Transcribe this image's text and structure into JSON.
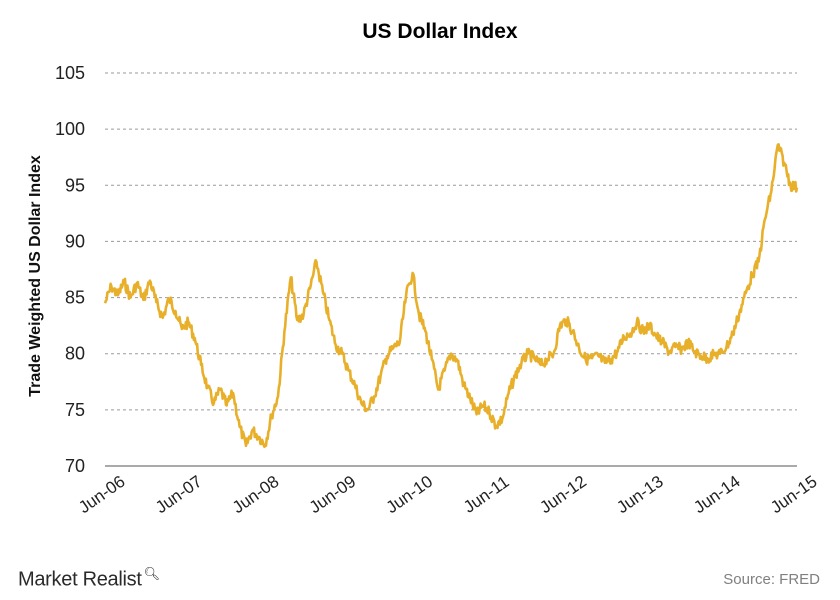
{
  "brand": {
    "name": "Market Realist",
    "icon": "magnifier-icon"
  },
  "source": "Source: FRED",
  "chart_data": {
    "type": "line",
    "title": "US Dollar Index",
    "xlabel": "",
    "ylabel": "Trade Weighted US Dollar Index",
    "ylim": [
      70,
      105
    ],
    "yticks": [
      70,
      75,
      80,
      85,
      90,
      95,
      100,
      105
    ],
    "xlim": [
      "2006-06",
      "2015-06"
    ],
    "xticks": [
      "Jun-06",
      "Jun-07",
      "Jun-08",
      "Jun-09",
      "Jun-10",
      "Jun-11",
      "Jun-12",
      "Jun-13",
      "Jun-14",
      "Jun-15"
    ],
    "grid": true,
    "color": "#E8B02A",
    "series": [
      {
        "name": "",
        "points": [
          [
            "2006-06",
            84.5
          ],
          [
            "2006-07",
            86.0
          ],
          [
            "2006-08",
            85.2
          ],
          [
            "2006-09",
            86.4
          ],
          [
            "2006-10",
            85.0
          ],
          [
            "2006-11",
            86.3
          ],
          [
            "2006-12",
            84.8
          ],
          [
            "2007-01",
            86.5
          ],
          [
            "2007-02",
            84.6
          ],
          [
            "2007-03",
            83.2
          ],
          [
            "2007-04",
            84.9
          ],
          [
            "2007-05",
            83.8
          ],
          [
            "2007-06",
            82.2
          ],
          [
            "2007-07",
            82.8
          ],
          [
            "2007-08",
            81.4
          ],
          [
            "2007-09",
            79.0
          ],
          [
            "2007-10",
            77.0
          ],
          [
            "2007-11",
            75.6
          ],
          [
            "2007-12",
            76.8
          ],
          [
            "2008-01",
            75.4
          ],
          [
            "2008-02",
            76.5
          ],
          [
            "2008-03",
            73.5
          ],
          [
            "2008-04",
            71.8
          ],
          [
            "2008-05",
            73.2
          ],
          [
            "2008-06",
            72.6
          ],
          [
            "2008-07",
            71.9
          ],
          [
            "2008-08",
            74.5
          ],
          [
            "2008-09",
            76.2
          ],
          [
            "2008-10",
            82.0
          ],
          [
            "2008-11",
            86.8
          ],
          [
            "2008-12",
            83.0
          ],
          [
            "2009-01",
            83.5
          ],
          [
            "2009-02",
            85.8
          ],
          [
            "2009-03",
            88.2
          ],
          [
            "2009-04",
            85.5
          ],
          [
            "2009-05",
            83.0
          ],
          [
            "2009-06",
            80.8
          ],
          [
            "2009-07",
            80.0
          ],
          [
            "2009-08",
            78.5
          ],
          [
            "2009-09",
            77.2
          ],
          [
            "2009-10",
            75.6
          ],
          [
            "2009-11",
            75.0
          ],
          [
            "2009-12",
            76.2
          ],
          [
            "2010-01",
            78.0
          ],
          [
            "2010-02",
            79.8
          ],
          [
            "2010-03",
            80.5
          ],
          [
            "2010-04",
            81.0
          ],
          [
            "2010-05",
            85.2
          ],
          [
            "2010-06",
            87.2
          ],
          [
            "2010-07",
            83.5
          ],
          [
            "2010-08",
            82.0
          ],
          [
            "2010-09",
            79.5
          ],
          [
            "2010-10",
            76.8
          ],
          [
            "2010-11",
            78.5
          ],
          [
            "2010-12",
            80.0
          ],
          [
            "2011-01",
            79.4
          ],
          [
            "2011-02",
            77.2
          ],
          [
            "2011-03",
            76.0
          ],
          [
            "2011-04",
            74.6
          ],
          [
            "2011-05",
            75.4
          ],
          [
            "2011-06",
            74.8
          ],
          [
            "2011-07",
            73.6
          ],
          [
            "2011-08",
            74.2
          ],
          [
            "2011-09",
            76.5
          ],
          [
            "2011-10",
            78.0
          ],
          [
            "2011-11",
            79.2
          ],
          [
            "2011-12",
            80.0
          ],
          [
            "2012-01",
            79.6
          ],
          [
            "2012-02",
            79.0
          ],
          [
            "2012-03",
            79.5
          ],
          [
            "2012-04",
            80.0
          ],
          [
            "2012-05",
            82.5
          ],
          [
            "2012-06",
            83.0
          ],
          [
            "2012-07",
            82.0
          ],
          [
            "2012-08",
            80.5
          ],
          [
            "2012-09",
            79.5
          ],
          [
            "2012-10",
            79.6
          ],
          [
            "2012-11",
            79.8
          ],
          [
            "2012-12",
            79.2
          ],
          [
            "2013-01",
            79.5
          ],
          [
            "2013-02",
            80.2
          ],
          [
            "2013-03",
            81.5
          ],
          [
            "2013-04",
            81.8
          ],
          [
            "2013-05",
            82.8
          ],
          [
            "2013-06",
            82.0
          ],
          [
            "2013-07",
            82.5
          ],
          [
            "2013-08",
            81.6
          ],
          [
            "2013-09",
            81.0
          ],
          [
            "2013-10",
            80.2
          ],
          [
            "2013-11",
            80.6
          ],
          [
            "2013-12",
            80.4
          ],
          [
            "2014-01",
            81.0
          ],
          [
            "2014-02",
            80.2
          ],
          [
            "2014-03",
            79.8
          ],
          [
            "2014-04",
            79.6
          ],
          [
            "2014-05",
            79.9
          ],
          [
            "2014-06",
            80.0
          ],
          [
            "2014-07",
            80.6
          ],
          [
            "2014-08",
            81.8
          ],
          [
            "2014-09",
            83.6
          ],
          [
            "2014-10",
            85.4
          ],
          [
            "2014-11",
            87.0
          ],
          [
            "2014-12",
            88.2
          ],
          [
            "2015-01",
            92.0
          ],
          [
            "2015-02",
            94.5
          ],
          [
            "2015-03",
            98.6
          ],
          [
            "2015-04",
            97.0
          ],
          [
            "2015-05",
            95.0
          ],
          [
            "2015-06",
            94.8
          ]
        ]
      }
    ]
  }
}
